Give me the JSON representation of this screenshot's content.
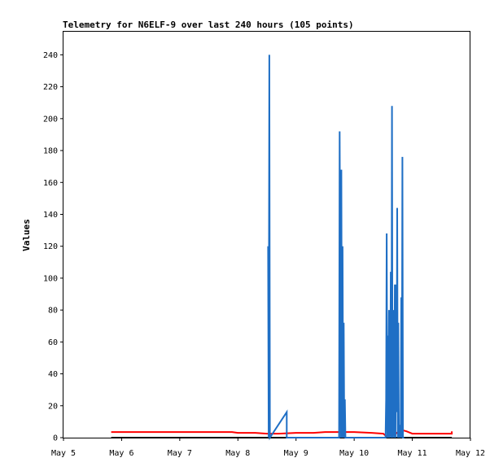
{
  "chart_data": {
    "type": "line",
    "title": "Telemetry for N6ELF-9 over last 240 hours (105 points)",
    "xlabel": "",
    "ylabel": "Values",
    "xlim": [
      "May 5",
      "May 12"
    ],
    "ylim": [
      0,
      255
    ],
    "grid": false,
    "x_ticks": [
      "May 5",
      "May 6",
      "May 7",
      "May 8",
      "May 9",
      "May 10",
      "May 11",
      "May 12"
    ],
    "y_ticks": [
      0,
      20,
      40,
      60,
      80,
      100,
      120,
      140,
      160,
      180,
      200,
      220,
      240
    ],
    "series": [
      {
        "color": "#000000",
        "points": [
          [
            0.82,
            0
          ],
          [
            1,
            0
          ],
          [
            2,
            0
          ],
          [
            3,
            0
          ],
          [
            4,
            0
          ],
          [
            5,
            0
          ],
          [
            6,
            0
          ],
          [
            6.68,
            0
          ]
        ]
      },
      {
        "color": "#ff0000",
        "points": [
          [
            0.82,
            3.5
          ],
          [
            1.5,
            3.5
          ],
          [
            2,
            3.5
          ],
          [
            2.5,
            3.5
          ],
          [
            2.9,
            3.5
          ],
          [
            3.0,
            3.0
          ],
          [
            3.3,
            3.0
          ],
          [
            3.5,
            2.5
          ],
          [
            3.7,
            2.5
          ],
          [
            4.0,
            3.0
          ],
          [
            4.3,
            3.0
          ],
          [
            4.5,
            3.5
          ],
          [
            4.8,
            3.5
          ],
          [
            5.0,
            3.5
          ],
          [
            5.3,
            3.0
          ],
          [
            5.5,
            2.5
          ],
          [
            5.55,
            1.0
          ],
          [
            5.7,
            2.0
          ],
          [
            5.8,
            5.0
          ],
          [
            5.9,
            4.0
          ],
          [
            6.0,
            2.5
          ],
          [
            6.2,
            2.5
          ],
          [
            6.5,
            2.5
          ],
          [
            6.68,
            2.5
          ],
          [
            6.68,
            4.0
          ]
        ]
      },
      {
        "color": "#1f6fc5",
        "points": [
          [
            3.52,
            120
          ],
          [
            3.53,
            0
          ],
          [
            3.54,
            240
          ],
          [
            3.55,
            0
          ],
          [
            3.84,
            16
          ],
          [
            3.84,
            0
          ],
          [
            4.74,
            0
          ],
          [
            4.75,
            192
          ],
          [
            4.77,
            0
          ],
          [
            4.78,
            168
          ],
          [
            4.79,
            0
          ],
          [
            4.8,
            120
          ],
          [
            4.81,
            0
          ],
          [
            4.82,
            72
          ],
          [
            4.83,
            0
          ],
          [
            4.84,
            24
          ],
          [
            4.85,
            0
          ],
          [
            5.54,
            0
          ],
          [
            5.55,
            24
          ],
          [
            5.56,
            128
          ],
          [
            5.57,
            0
          ],
          [
            5.58,
            64
          ],
          [
            5.59,
            0
          ],
          [
            5.6,
            80
          ],
          [
            5.61,
            0
          ],
          [
            5.62,
            8
          ],
          [
            5.63,
            104
          ],
          [
            5.64,
            0
          ],
          [
            5.65,
            208
          ],
          [
            5.66,
            0
          ],
          [
            5.67,
            24
          ],
          [
            5.68,
            80
          ],
          [
            5.69,
            0
          ],
          [
            5.7,
            96
          ],
          [
            5.71,
            0
          ],
          [
            5.72,
            96
          ],
          [
            5.73,
            16
          ],
          [
            5.74,
            144
          ],
          [
            5.75,
            0
          ],
          [
            5.76,
            72
          ],
          [
            5.77,
            0
          ],
          [
            5.78,
            8
          ],
          [
            5.8,
            0
          ],
          [
            5.81,
            88
          ],
          [
            5.82,
            0
          ],
          [
            5.83,
            176
          ],
          [
            5.84,
            0
          ],
          [
            5.86,
            0
          ]
        ]
      }
    ]
  }
}
